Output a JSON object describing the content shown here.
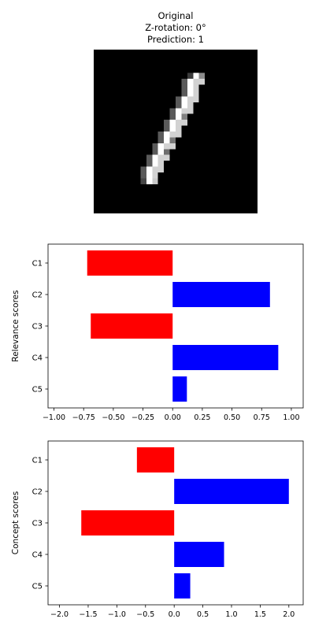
{
  "image_panel": {
    "title_lines": [
      "Original",
      "Z-rotation: 0°",
      "Prediction: 1"
    ],
    "image_description_name": "mnist-digit-one"
  },
  "chart_data": [
    {
      "type": "bar",
      "orientation": "horizontal",
      "categories": [
        "C1",
        "C2",
        "C3",
        "C4",
        "C5"
      ],
      "values": [
        -0.72,
        0.82,
        -0.69,
        0.89,
        0.12
      ],
      "colors": [
        "#ff0000",
        "#0000ff",
        "#ff0000",
        "#0000ff",
        "#0000ff"
      ],
      "xlim": [
        -1.05,
        1.1
      ],
      "xticks": [
        -1.0,
        -0.75,
        -0.5,
        -0.25,
        0.0,
        0.25,
        0.5,
        0.75,
        1.0
      ],
      "xtick_labels": [
        "−1.00",
        "−0.75",
        "−0.50",
        "−0.25",
        "0.00",
        "0.25",
        "0.50",
        "0.75",
        "1.00"
      ],
      "xlabel": "",
      "ylabel": "Relevance scores",
      "grid": false
    },
    {
      "type": "bar",
      "orientation": "horizontal",
      "categories": [
        "C1",
        "C2",
        "C3",
        "C4",
        "C5"
      ],
      "values": [
        -0.65,
        2.0,
        -1.62,
        0.87,
        0.28
      ],
      "colors": [
        "#ff0000",
        "#0000ff",
        "#ff0000",
        "#0000ff",
        "#0000ff"
      ],
      "xlim": [
        -2.2,
        2.25
      ],
      "xticks": [
        -2.0,
        -1.5,
        -1.0,
        -0.5,
        0.0,
        0.5,
        1.0,
        1.5,
        2.0
      ],
      "xtick_labels": [
        "−2.0",
        "−1.5",
        "−1.0",
        "−0.5",
        "0.0",
        "0.5",
        "1.0",
        "1.5",
        "2.0"
      ],
      "xlabel": "",
      "ylabel": "Concept scores",
      "grid": false
    }
  ]
}
